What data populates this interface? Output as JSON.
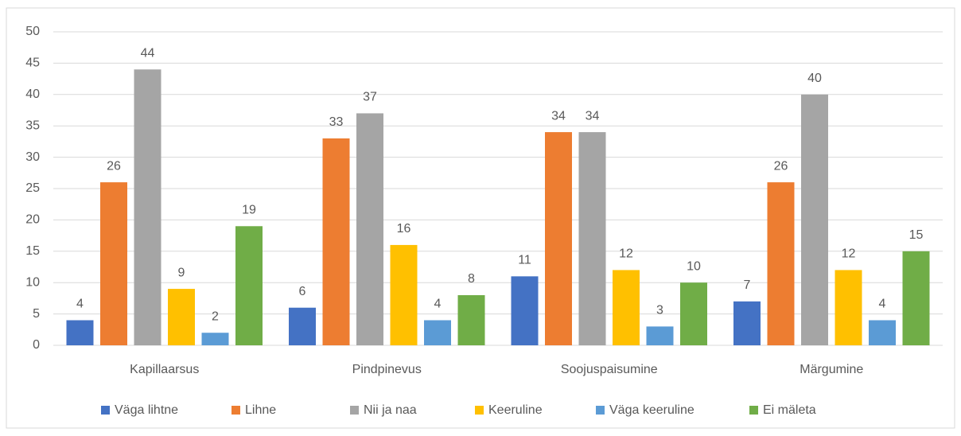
{
  "chart_data": {
    "type": "bar",
    "categories": [
      "Kapillaarsus",
      "Pindpinevus",
      "Soojuspaisumine",
      "Märgumine"
    ],
    "series": [
      {
        "name": "Väga lihtne",
        "color": "#4472c4",
        "values": [
          4,
          6,
          11,
          7
        ]
      },
      {
        "name": "Lihne",
        "color": "#ed7d31",
        "values": [
          26,
          33,
          34,
          26
        ]
      },
      {
        "name": "Nii ja naa",
        "color": "#a5a5a5",
        "values": [
          44,
          37,
          34,
          40
        ]
      },
      {
        "name": "Keeruline",
        "color": "#ffc000",
        "values": [
          9,
          16,
          12,
          12
        ]
      },
      {
        "name": "Väga keeruline",
        "color": "#5b9bd5",
        "values": [
          2,
          4,
          3,
          4
        ]
      },
      {
        "name": "Ei mäleta",
        "color": "#70ad47",
        "values": [
          19,
          8,
          10,
          15
        ]
      }
    ],
    "ylim": [
      0,
      50
    ],
    "yticks": [
      0,
      5,
      10,
      15,
      20,
      25,
      30,
      35,
      40,
      45,
      50
    ],
    "grid": true,
    "legend": "bottom"
  }
}
